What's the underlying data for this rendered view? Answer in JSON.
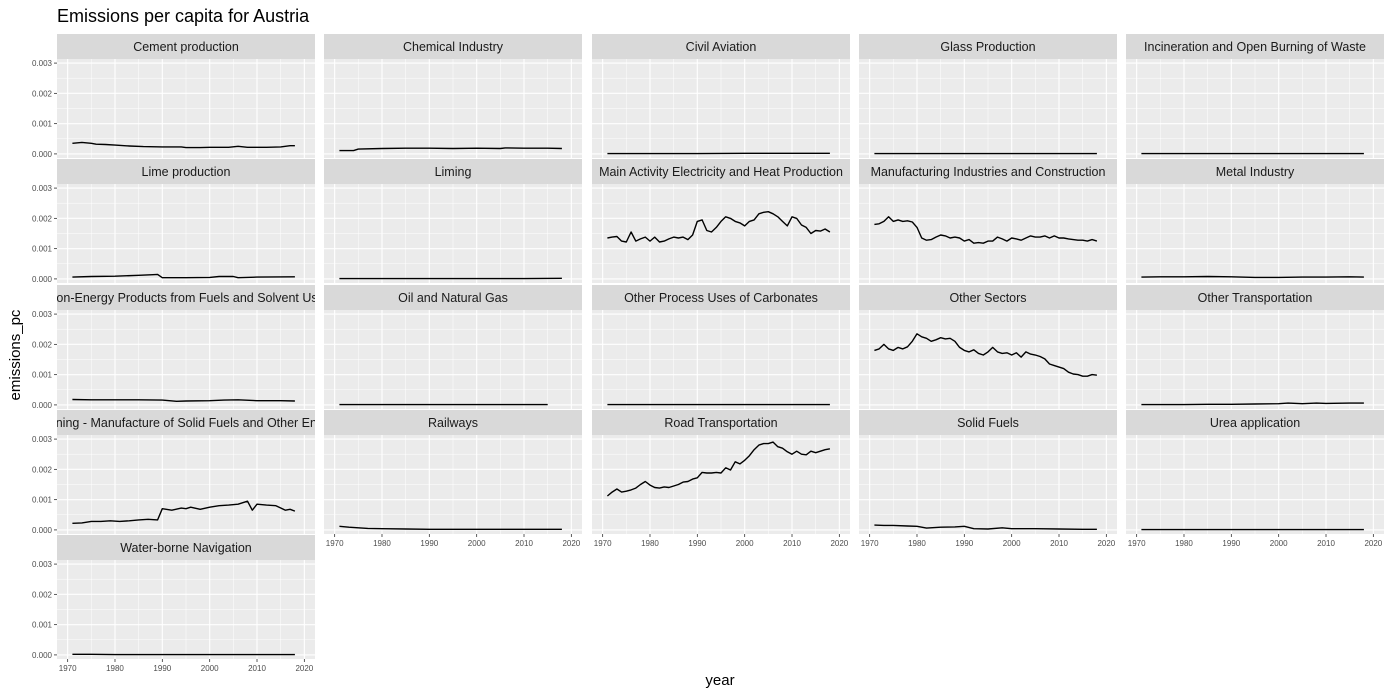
{
  "title": "Emissions per capita for Austria",
  "colors": {
    "panel": "#ebebeb",
    "strip": "#d9d9d9",
    "grid_major": "#ffffff",
    "line": "#000000"
  },
  "chart_data": {
    "type": "line",
    "layout": "facet_wrap",
    "columns": 5,
    "xlabel": "year",
    "ylabel": "emissions_pc",
    "xlim": [
      1970,
      2020
    ],
    "ylim": [
      0,
      0.003
    ],
    "x_ticks": [
      1970,
      1980,
      1990,
      2000,
      2010,
      2020
    ],
    "y_ticks": [
      0.0,
      0.001,
      0.002,
      0.003
    ],
    "x_tick_labels": [
      "1970",
      "1980",
      "1990",
      "2000",
      "2010",
      "2020"
    ],
    "y_tick_labels": [
      "0.000",
      "0.001",
      "0.002",
      "0.003"
    ],
    "grid": true,
    "panels": [
      {
        "name": "Cement production",
        "x": [
          1971,
          1973,
          1975,
          1976,
          1978,
          1980,
          1983,
          1986,
          1990,
          1994,
          1995,
          1998,
          2000,
          2004,
          2006,
          2008,
          2012,
          2015,
          2017,
          2018
        ],
        "y": [
          0.00035,
          0.00038,
          0.00035,
          0.00032,
          0.00031,
          0.00029,
          0.00026,
          0.00024,
          0.00023,
          0.00023,
          0.00021,
          0.00021,
          0.00022,
          0.00022,
          0.00025,
          0.00022,
          0.00022,
          0.00023,
          0.00027,
          0.00027
        ]
      },
      {
        "name": "Chemical Industry",
        "x": [
          1971,
          1974,
          1975,
          1980,
          1985,
          1990,
          1995,
          2000,
          2005,
          2006,
          2010,
          2015,
          2018
        ],
        "y": [
          0.00011,
          0.00011,
          0.00016,
          0.00018,
          0.00019,
          0.00019,
          0.00018,
          0.00019,
          0.00018,
          0.0002,
          0.00019,
          0.00019,
          0.00018
        ]
      },
      {
        "name": "Civil Aviation",
        "x": [
          1971,
          1980,
          1990,
          2000,
          2010,
          2018
        ],
        "y": [
          1e-05,
          1e-05,
          1e-05,
          2e-05,
          2e-05,
          2e-05
        ]
      },
      {
        "name": "Glass Production",
        "x": [
          1971,
          1980,
          1990,
          2000,
          2010,
          2018
        ],
        "y": [
          1e-05,
          1e-05,
          1e-05,
          1e-05,
          1e-05,
          1e-05
        ]
      },
      {
        "name": "Incineration and Open Burning of Waste",
        "x": [
          1971,
          1980,
          1990,
          2000,
          2010,
          2018
        ],
        "y": [
          1e-05,
          1e-05,
          1e-05,
          1e-05,
          1e-05,
          1e-05
        ]
      },
      {
        "name": "Lime production",
        "x": [
          1971,
          1975,
          1980,
          1985,
          1988,
          1989,
          1990,
          1995,
          2000,
          2002,
          2005,
          2006,
          2010,
          2018
        ],
        "y": [
          6e-05,
          8e-05,
          9e-05,
          0.00012,
          0.00014,
          0.00015,
          4e-05,
          4e-05,
          5e-05,
          8e-05,
          8e-05,
          4e-05,
          6e-05,
          7e-05
        ]
      },
      {
        "name": "Liming",
        "x": [
          1971,
          1980,
          1990,
          2000,
          2010,
          2018
        ],
        "y": [
          1e-05,
          1e-05,
          1e-05,
          1e-05,
          1e-05,
          2e-05
        ]
      },
      {
        "name": "Main Activity Electricity and Heat Production",
        "x": [
          1971,
          1972,
          1973,
          1974,
          1975,
          1976,
          1977,
          1978,
          1979,
          1980,
          1981,
          1982,
          1983,
          1984,
          1985,
          1986,
          1987,
          1988,
          1989,
          1990,
          1991,
          1992,
          1993,
          1994,
          1995,
          1996,
          1997,
          1998,
          1999,
          2000,
          2001,
          2002,
          2003,
          2004,
          2005,
          2006,
          2007,
          2008,
          2009,
          2010,
          2011,
          2012,
          2013,
          2014,
          2015,
          2016,
          2017,
          2018
        ],
        "y": [
          0.00135,
          0.00138,
          0.0014,
          0.00125,
          0.00122,
          0.00155,
          0.00125,
          0.00132,
          0.00138,
          0.00125,
          0.00138,
          0.00122,
          0.00125,
          0.00132,
          0.00138,
          0.00135,
          0.00138,
          0.0013,
          0.00145,
          0.0019,
          0.00195,
          0.0016,
          0.00155,
          0.0017,
          0.0019,
          0.00205,
          0.002,
          0.0019,
          0.00185,
          0.00175,
          0.0019,
          0.00195,
          0.00215,
          0.0022,
          0.00222,
          0.00215,
          0.00205,
          0.0019,
          0.00175,
          0.00205,
          0.002,
          0.00178,
          0.0017,
          0.0015,
          0.0016,
          0.00158,
          0.00165,
          0.00155
        ]
      },
      {
        "name": "Manufacturing Industries and Construction",
        "x": [
          1971,
          1972,
          1973,
          1974,
          1975,
          1976,
          1977,
          1978,
          1979,
          1980,
          1981,
          1982,
          1983,
          1984,
          1985,
          1986,
          1987,
          1988,
          1989,
          1990,
          1991,
          1992,
          1993,
          1994,
          1995,
          1996,
          1997,
          1998,
          1999,
          2000,
          2001,
          2002,
          2003,
          2004,
          2005,
          2006,
          2007,
          2008,
          2009,
          2010,
          2011,
          2012,
          2013,
          2014,
          2015,
          2016,
          2017,
          2018
        ],
        "y": [
          0.0018,
          0.00182,
          0.0019,
          0.00205,
          0.0019,
          0.00195,
          0.0019,
          0.00192,
          0.00188,
          0.0017,
          0.00135,
          0.00128,
          0.0013,
          0.00138,
          0.00145,
          0.00142,
          0.00135,
          0.00138,
          0.00135,
          0.00125,
          0.0013,
          0.00118,
          0.0012,
          0.00118,
          0.00125,
          0.00125,
          0.00138,
          0.00132,
          0.00125,
          0.00135,
          0.00132,
          0.00128,
          0.00135,
          0.00142,
          0.00138,
          0.00138,
          0.00142,
          0.00135,
          0.00142,
          0.00135,
          0.00135,
          0.00132,
          0.0013,
          0.00128,
          0.00128,
          0.00125,
          0.0013,
          0.00125
        ]
      },
      {
        "name": "Metal Industry",
        "x": [
          1971,
          1975,
          1980,
          1985,
          1990,
          1995,
          2000,
          2005,
          2010,
          2015,
          2018
        ],
        "y": [
          6e-05,
          7e-05,
          7e-05,
          8e-05,
          7e-05,
          5e-05,
          5e-05,
          6e-05,
          6e-05,
          7e-05,
          6e-05
        ]
      },
      {
        "name": "Non-Energy Products from Fuels and Solvent Use",
        "x": [
          1971,
          1975,
          1980,
          1985,
          1990,
          1993,
          1995,
          2000,
          2003,
          2006,
          2010,
          2015,
          2018
        ],
        "y": [
          0.00018,
          0.00017,
          0.00017,
          0.00017,
          0.00016,
          0.00012,
          0.00013,
          0.00014,
          0.00016,
          0.00017,
          0.00014,
          0.00014,
          0.00013
        ]
      },
      {
        "name": "Oil and Natural Gas",
        "x": [
          1971,
          1980,
          1990,
          2000,
          2010,
          2015
        ],
        "y": [
          1e-05,
          1e-05,
          1e-05,
          1e-05,
          1e-05,
          1e-05
        ]
      },
      {
        "name": "Other Process Uses of Carbonates",
        "x": [
          1971,
          1980,
          1990,
          2000,
          2010,
          2018
        ],
        "y": [
          1e-05,
          1e-05,
          1e-05,
          1e-05,
          1e-05,
          1e-05
        ]
      },
      {
        "name": "Other Sectors",
        "x": [
          1971,
          1972,
          1973,
          1974,
          1975,
          1976,
          1977,
          1978,
          1979,
          1980,
          1981,
          1982,
          1983,
          1984,
          1985,
          1986,
          1987,
          1988,
          1989,
          1990,
          1991,
          1992,
          1993,
          1994,
          1995,
          1996,
          1997,
          1998,
          1999,
          2000,
          2001,
          2002,
          2003,
          2004,
          2005,
          2006,
          2007,
          2008,
          2009,
          2010,
          2011,
          2012,
          2013,
          2014,
          2015,
          2016,
          2017,
          2018
        ],
        "y": [
          0.0018,
          0.00185,
          0.002,
          0.00185,
          0.0018,
          0.0019,
          0.00185,
          0.00192,
          0.0021,
          0.00235,
          0.00225,
          0.0022,
          0.0021,
          0.00215,
          0.00222,
          0.00218,
          0.0022,
          0.0021,
          0.0019,
          0.0018,
          0.00175,
          0.00182,
          0.0017,
          0.00165,
          0.00175,
          0.0019,
          0.00175,
          0.0017,
          0.00172,
          0.00165,
          0.00172,
          0.00158,
          0.00175,
          0.00168,
          0.00165,
          0.0016,
          0.00152,
          0.00135,
          0.0013,
          0.00125,
          0.0012,
          0.00108,
          0.00102,
          0.001,
          0.00095,
          0.00095,
          0.001,
          0.00098
        ]
      },
      {
        "name": "Other Transportation",
        "x": [
          1971,
          1975,
          1980,
          1985,
          1990,
          1995,
          2000,
          2002,
          2005,
          2008,
          2010,
          2015,
          2018
        ],
        "y": [
          1e-05,
          1e-05,
          1e-05,
          2e-05,
          2e-05,
          3e-05,
          4e-05,
          6e-05,
          4e-05,
          6e-05,
          5e-05,
          6e-05,
          6e-05
        ]
      },
      {
        "name": "Petroleum Refining - Manufacture of Solid Fuels and Other Energy Industries",
        "x": [
          1971,
          1973,
          1975,
          1977,
          1979,
          1981,
          1983,
          1985,
          1987,
          1989,
          1990,
          1992,
          1994,
          1995,
          1996,
          1998,
          2000,
          2002,
          2004,
          2006,
          2008,
          2009,
          2010,
          2012,
          2014,
          2016,
          2017,
          2018
        ],
        "y": [
          0.00022,
          0.00023,
          0.00028,
          0.00028,
          0.0003,
          0.00028,
          0.0003,
          0.00033,
          0.00035,
          0.00033,
          0.0007,
          0.00065,
          0.00072,
          0.0007,
          0.00075,
          0.00068,
          0.00075,
          0.0008,
          0.00082,
          0.00085,
          0.00095,
          0.00065,
          0.00085,
          0.00082,
          0.0008,
          0.00065,
          0.00068,
          0.00062
        ]
      },
      {
        "name": "Railways",
        "x": [
          1971,
          1973,
          1975,
          1977,
          1980,
          1985,
          1990,
          1995,
          2000,
          2005,
          2010,
          2015,
          2018
        ],
        "y": [
          0.00012,
          9e-05,
          7e-05,
          5e-05,
          4e-05,
          3e-05,
          2e-05,
          2e-05,
          2e-05,
          2e-05,
          2e-05,
          2e-05,
          2e-05
        ]
      },
      {
        "name": "Road Transportation",
        "x": [
          1971,
          1972,
          1973,
          1974,
          1975,
          1976,
          1977,
          1978,
          1979,
          1980,
          1981,
          1982,
          1983,
          1984,
          1985,
          1986,
          1987,
          1988,
          1989,
          1990,
          1991,
          1992,
          1993,
          1994,
          1995,
          1996,
          1997,
          1998,
          1999,
          2000,
          2001,
          2002,
          2003,
          2004,
          2005,
          2006,
          2007,
          2008,
          2009,
          2010,
          2011,
          2012,
          2013,
          2014,
          2015,
          2016,
          2017,
          2018
        ],
        "y": [
          0.00112,
          0.00125,
          0.00135,
          0.00125,
          0.00128,
          0.00132,
          0.00138,
          0.0015,
          0.0016,
          0.00148,
          0.0014,
          0.00138,
          0.00142,
          0.0014,
          0.00145,
          0.0015,
          0.00158,
          0.0016,
          0.00168,
          0.00172,
          0.0019,
          0.00188,
          0.00188,
          0.0019,
          0.00188,
          0.00205,
          0.00198,
          0.00225,
          0.00218,
          0.0023,
          0.00245,
          0.00265,
          0.0028,
          0.00285,
          0.00285,
          0.0029,
          0.00275,
          0.0027,
          0.00258,
          0.0025,
          0.0026,
          0.0025,
          0.00248,
          0.0026,
          0.00255,
          0.0026,
          0.00265,
          0.00268
        ]
      },
      {
        "name": "Solid Fuels",
        "x": [
          1971,
          1973,
          1975,
          1978,
          1980,
          1982,
          1985,
          1988,
          1990,
          1992,
          1995,
          1998,
          2000,
          2005,
          2010,
          2015,
          2018
        ],
        "y": [
          0.00016,
          0.00015,
          0.00015,
          0.00013,
          0.00012,
          6e-05,
          9e-05,
          0.0001,
          0.00012,
          4e-05,
          3e-05,
          7e-05,
          4e-05,
          4e-05,
          3e-05,
          2e-05,
          2e-05
        ]
      },
      {
        "name": "Urea application",
        "x": [
          1971,
          1980,
          1990,
          2000,
          2010,
          2018
        ],
        "y": [
          1e-05,
          1e-05,
          1e-05,
          1e-05,
          1e-05,
          1e-05
        ]
      },
      {
        "name": "Water-borne Navigation",
        "x": [
          1971,
          1975,
          1980,
          1990,
          2000,
          2010,
          2018
        ],
        "y": [
          2e-05,
          2e-05,
          1e-05,
          1e-05,
          1e-05,
          1e-05,
          1e-05
        ]
      }
    ]
  }
}
